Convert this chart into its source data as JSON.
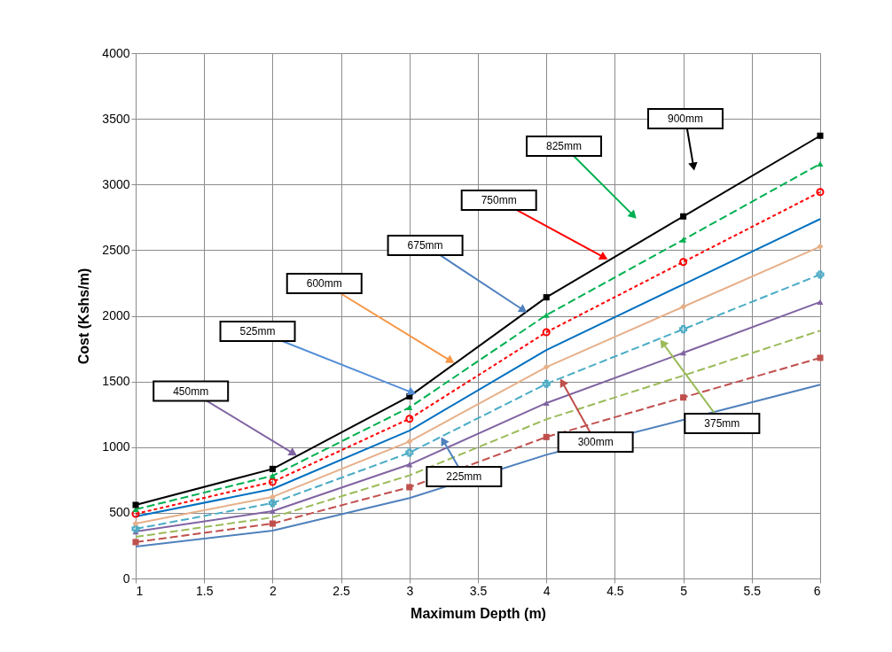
{
  "chart_data": {
    "type": "line",
    "xlabel": "Maximum Depth (m)",
    "ylabel": "Cost (Kshs/m)",
    "x": [
      1,
      2,
      3,
      4,
      5,
      6
    ],
    "xlim": [
      1,
      6
    ],
    "xticks": [
      1,
      1.5,
      2,
      2.5,
      3,
      3.5,
      4,
      4.5,
      5,
      5.5,
      6
    ],
    "ylim": [
      0,
      4000
    ],
    "yticks": [
      0,
      500,
      1000,
      1500,
      2000,
      2500,
      3000,
      3500,
      4000
    ],
    "grid": true,
    "legend": false,
    "series": [
      {
        "color": "#4f81bd",
        "marker": "none",
        "line_style": "solid",
        "values": [
          243,
          364,
          612,
          942,
          1207,
          1475
        ]
      },
      {
        "color": "#c0504d",
        "marker": "square",
        "line_style": "dashed",
        "values": [
          277,
          418,
          695,
          1077,
          1378,
          1680
        ]
      },
      {
        "color": "#9bbb59",
        "marker": "none",
        "line_style": "dashed",
        "values": [
          317,
          465,
          785,
          1212,
          1545,
          1887
        ]
      },
      {
        "color": "#8064a2",
        "marker": "triangle",
        "line_style": "solid",
        "values": [
          357,
          513,
          868,
          1336,
          1718,
          2105
        ]
      },
      {
        "color": "#4bacc6",
        "marker": "cross",
        "line_style": "dashed",
        "values": [
          378,
          574,
          958,
          1482,
          1898,
          2314
        ]
      },
      {
        "color": "#e6b08a",
        "marker": "diamond",
        "line_style": "solid",
        "values": [
          418,
          621,
          1043,
          1610,
          2069,
          2527
        ]
      },
      {
        "color": "#0070c0",
        "marker": "none",
        "line_style": "solid",
        "values": [
          472,
          681,
          1126,
          1740,
          2239,
          2737
        ]
      },
      {
        "color": "#ff0000",
        "marker": "circle",
        "line_style": "dotted",
        "values": [
          492,
          735,
          1216,
          1875,
          2410,
          2943
        ]
      },
      {
        "color": "#00b050",
        "marker": "triangle",
        "line_style": "dashed",
        "values": [
          526,
          782,
          1302,
          2006,
          2579,
          3157
        ]
      },
      {
        "color": "#000000",
        "marker": "square",
        "line_style": "solid",
        "values": [
          560,
          834,
          1387,
          2141,
          2757,
          3371
        ]
      }
    ],
    "annotations": [
      {
        "text": "225mm",
        "x": 3.23,
        "y": 1079
      },
      {
        "text": "300mm",
        "x": 4.1,
        "y": 1524
      },
      {
        "text": "375mm",
        "x": 4.83,
        "y": 1821
      },
      {
        "text": "450mm",
        "x": 2.18,
        "y": 934
      },
      {
        "text": "525mm",
        "x": 3.05,
        "y": 1403
      },
      {
        "text": "600mm",
        "x": 3.33,
        "y": 1639
      },
      {
        "text": "675mm",
        "x": 3.86,
        "y": 2024
      },
      {
        "text": "750mm",
        "x": 4.45,
        "y": 2428
      },
      "825mm",
      "900mm"
    ]
  }
}
